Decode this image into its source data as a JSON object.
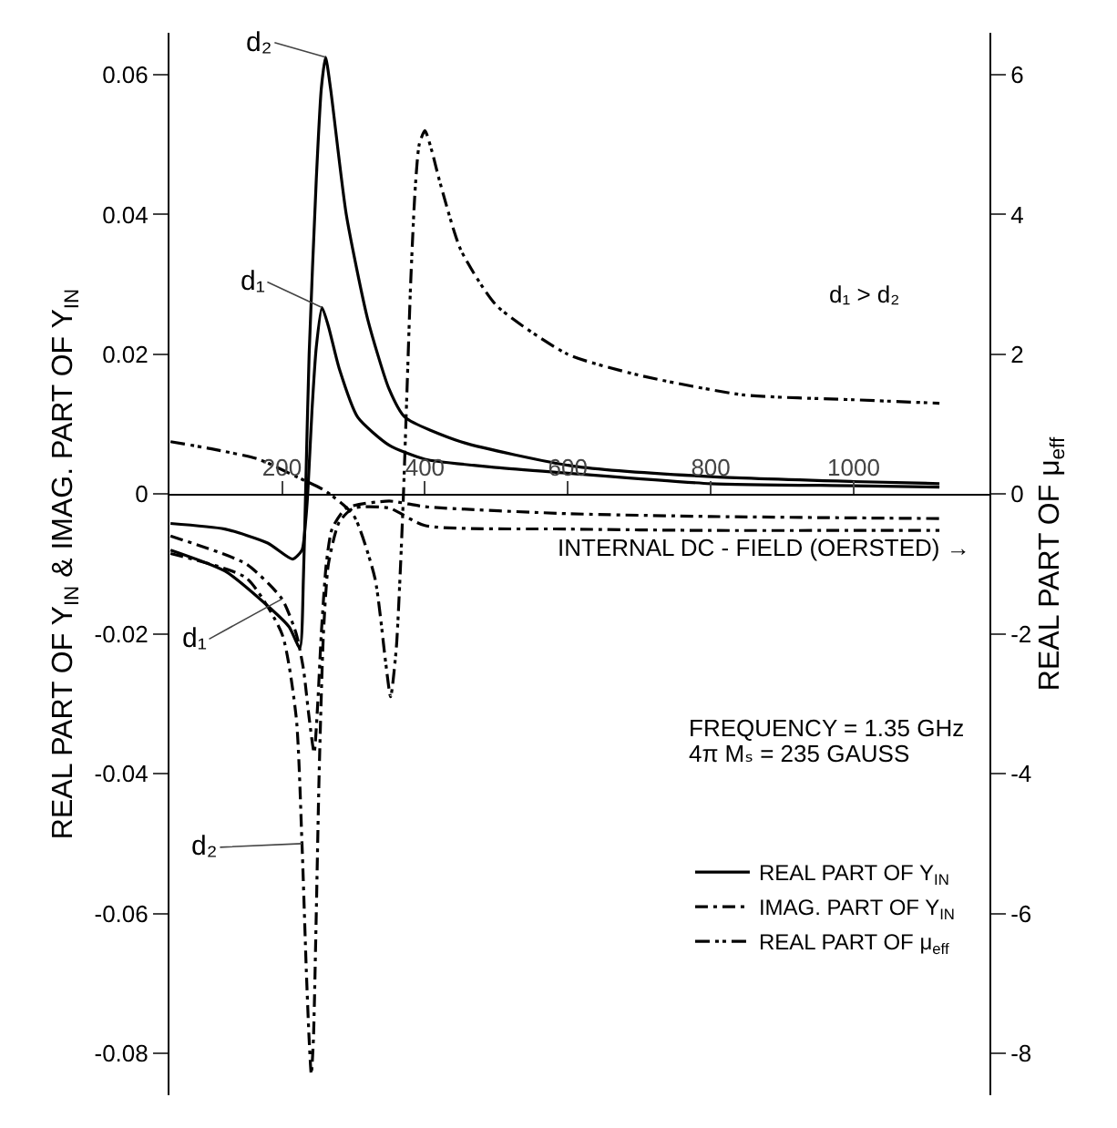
{
  "chart_data": {
    "type": "line",
    "xlabel": "INTERNAL DC - FIELD (OERSTED) →",
    "ylabel": "REAL PART OF Y$_{IN}$ & IMAG. PART OF Y$_{IN}$",
    "y2label": "REAL PART OF μ$_{eff}$",
    "xlim": [
      40,
      1190
    ],
    "xticks": [
      200,
      400,
      600,
      800,
      1000
    ],
    "ylim": [
      -0.086,
      0.066
    ],
    "yticks": [
      -0.08,
      -0.06,
      -0.04,
      -0.02,
      0,
      0.02,
      0.04,
      0.06
    ],
    "y2lim": [
      -8.6,
      6.6
    ],
    "y2ticks": [
      -8,
      -6,
      -4,
      -2,
      0,
      2,
      4,
      6
    ],
    "grid": false,
    "legend": "bottom right",
    "annotations": [
      {
        "text": "d₂",
        "x": 261,
        "y": 0.0625
      },
      {
        "text": "d₁",
        "x": 256,
        "y": 0.0267
      },
      {
        "text": "d₁",
        "x": 200,
        "y": -0.015
      },
      {
        "text": "d₂",
        "x": 228,
        "y": -0.05
      },
      "d₁ > d₂",
      "FREQUENCY = 1.35 GHz",
      "4π Mₛ = 235 GAUSS"
    ],
    "series": [
      {
        "name": "REAL PART OF Y$_{IN}$",
        "color": "#000000",
        "line_style": "solid",
        "x": [
          44,
          120,
          180,
          215,
          228,
          233,
          236,
          242,
          248,
          256,
          265,
          280,
          306,
          350,
          400,
          500,
          600,
          800,
          1000,
          1120
        ],
        "values": [
          -0.0042,
          -0.005,
          -0.007,
          -0.0093,
          -0.008,
          -0.004,
          0.0,
          0.012,
          0.021,
          0.0267,
          0.024,
          0.018,
          0.011,
          0.007,
          0.005,
          0.0038,
          0.003,
          0.0015,
          0.0012,
          0.001
        ]
      },
      {
        "color": "#000000",
        "line_style": "solid",
        "x": [
          44,
          120,
          180,
          210,
          225,
          230,
          233,
          238,
          248,
          255,
          261,
          268,
          290,
          320,
          350,
          372,
          450,
          608,
          800,
          1000,
          1120
        ],
        "values": [
          -0.008,
          -0.011,
          -0.016,
          -0.019,
          -0.022,
          -0.012,
          0.0,
          0.02,
          0.045,
          0.058,
          0.0625,
          0.058,
          0.04,
          0.025,
          0.015,
          0.011,
          0.0075,
          0.004,
          0.0025,
          0.0018,
          0.0015
        ]
      },
      {
        "name": "IMAG. PART OF Y$_{IN}$",
        "color": "#000000",
        "line_style": "dash-dot",
        "x": [
          44,
          150,
          200,
          220,
          230,
          238,
          245,
          250,
          255,
          262,
          270,
          290,
          350,
          400,
          600,
          800,
          1000,
          1120
        ],
        "values": [
          -0.006,
          -0.01,
          -0.015,
          -0.02,
          -0.025,
          -0.032,
          -0.037,
          -0.03,
          -0.02,
          -0.01,
          -0.005,
          -0.002,
          -0.001,
          -0.0018,
          -0.0028,
          -0.0032,
          -0.0034,
          -0.0035
        ]
      },
      {
        "color": "#000000",
        "line_style": "dash-dot",
        "x": [
          44,
          150,
          200,
          220,
          228,
          234,
          238,
          241,
          244,
          248,
          252,
          258,
          265,
          280,
          300,
          350,
          400,
          600,
          800,
          1000,
          1120
        ],
        "values": [
          -0.0085,
          -0.012,
          -0.02,
          -0.032,
          -0.05,
          -0.068,
          -0.078,
          -0.083,
          -0.078,
          -0.06,
          -0.04,
          -0.02,
          -0.01,
          -0.004,
          -0.002,
          -0.002,
          -0.0045,
          -0.005,
          -0.0052,
          -0.0052,
          -0.0052
        ]
      },
      {
        "name": "REAL PART OF μ$_{eff}$",
        "color": "#000000",
        "line_style": "dash-dot-dot",
        "axis": "y2",
        "x": [
          44,
          100,
          167,
          220,
          260,
          300,
          330,
          345,
          352,
          360,
          366,
          370,
          375,
          380,
          386,
          392,
          400,
          410,
          420,
          450,
          500,
          600,
          700,
          845,
          1000,
          1120
        ],
        "values": [
          0.75,
          0.65,
          0.5,
          0.25,
          0.05,
          -0.3,
          -1.2,
          -2.4,
          -2.9,
          -2.2,
          -1.0,
          0.0,
          1.5,
          3.0,
          4.3,
          5.0,
          5.2,
          4.9,
          4.5,
          3.5,
          2.7,
          2.0,
          1.7,
          1.42,
          1.35,
          1.3
        ]
      }
    ]
  }
}
